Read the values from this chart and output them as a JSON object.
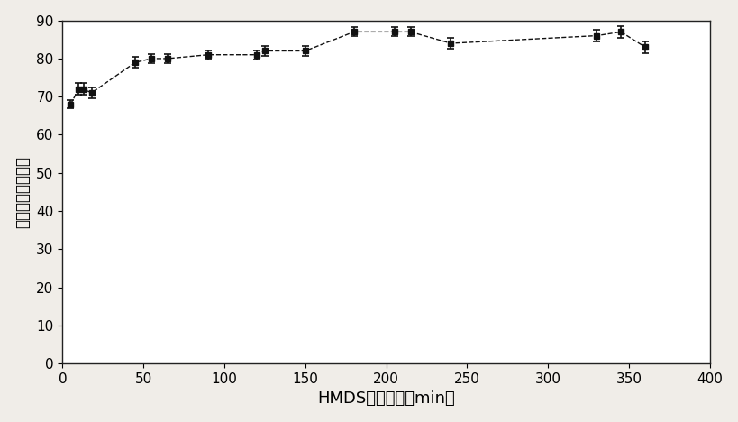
{
  "x": [
    5,
    10,
    13,
    18,
    45,
    55,
    65,
    90,
    120,
    125,
    150,
    180,
    205,
    215,
    240,
    330,
    345,
    360
  ],
  "y": [
    68,
    72,
    72,
    71,
    79,
    80,
    80,
    81,
    81,
    82,
    82,
    87,
    87,
    87,
    84,
    86,
    87,
    83
  ],
  "yerr": [
    1.0,
    1.5,
    1.5,
    1.5,
    1.5,
    1.2,
    1.2,
    1.2,
    1.2,
    1.2,
    1.2,
    1.2,
    1.2,
    1.2,
    1.5,
    1.5,
    1.5,
    1.5
  ],
  "xlabel": "HMDS処理時間（min）",
  "ylabel": "純水接触角（度）",
  "xlim": [
    0,
    400
  ],
  "ylim": [
    0,
    90
  ],
  "xticks": [
    0,
    50,
    100,
    150,
    200,
    250,
    300,
    350,
    400
  ],
  "yticks": [
    0,
    10,
    20,
    30,
    40,
    50,
    60,
    70,
    80,
    90
  ],
  "line_color": "#111111",
  "marker_color": "#111111",
  "background_color": "#ffffff",
  "figure_background": "#f0ede8",
  "xlabel_fontsize": 13,
  "ylabel_fontsize": 12,
  "tick_fontsize": 11,
  "figsize": [
    8.19,
    4.68
  ],
  "dpi": 100
}
